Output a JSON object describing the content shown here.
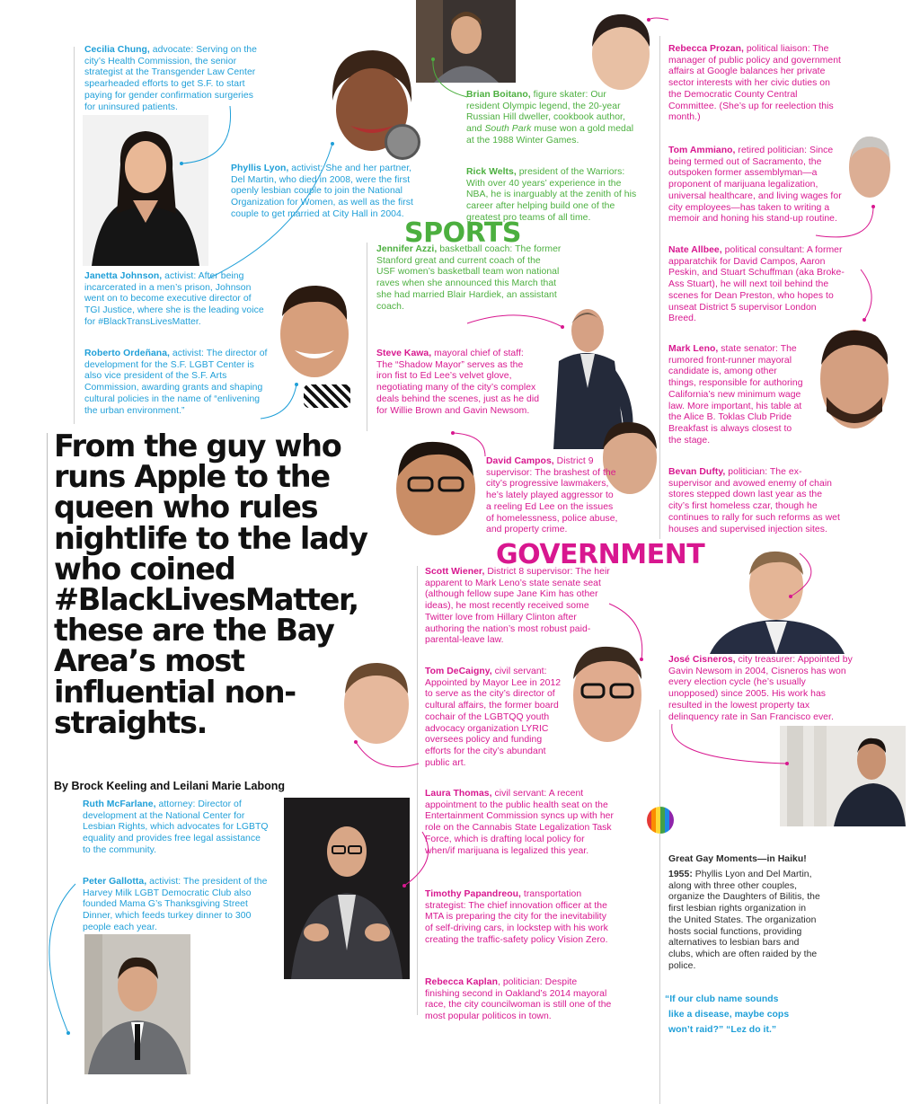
{
  "headline": "From the guy who runs Apple to the queen who rules nightlife to the lady who coined #BlackLivesMatter, these are the Bay Area’s most influential non-straights.",
  "byline": "By Brock Keeling and Leilani Marie Labong",
  "sections": {
    "sports": "SPORTS",
    "government": "GOVERNMENT"
  },
  "people": [
    {
      "id": "cecilia",
      "name": "Cecilia Chung,",
      "text": " advocate: Serving on the city’s Health Commission, the senior strategist at the Transgender Law Center spearheaded efforts to get S.F. to start paying for gender confirmation surgeries for uninsured patients."
    },
    {
      "id": "phyllis",
      "name": "Phyllis Lyon,",
      "text": " activist: She and her partner, Del Martin, who died in 2008, were the first openly lesbian couple to join the National Organization for Women, as well as the first couple to get married at City Hall in 2004."
    },
    {
      "id": "janetta",
      "name": "Janetta Johnson,",
      "text": " activist: After being incarcerated in a men’s prison, Johnson went on to become executive director of TGI Justice, where she is the leading voice for #BlackTransLivesMatter."
    },
    {
      "id": "roberto",
      "name": "Roberto Ordeñana,",
      "text": " activist: The director of development for the S.F. LGBT Center is also vice president of the S.F. Arts Commission, awarding grants and shaping cultural policies in the name of “enlivening the urban environment.”"
    },
    {
      "id": "brian",
      "name": "Brian Boitano,",
      "text_pre": " figure skater: Our resident Olympic legend, the 20-year Russian Hill dweller, cookbook author, and ",
      "text_em": "South Park",
      "text_post": " muse won a gold medal at the 1988 Winter Games."
    },
    {
      "id": "rick",
      "name": "Rick Welts,",
      "text": " president of the Warriors: With over 40 years’ experience in the NBA, he is inarguably at the zenith of his career after helping build one of the greatest pro teams of all time."
    },
    {
      "id": "jennifer",
      "name": "Jennifer Azzi,",
      "text": " basketball coach: The former Stanford great and current coach of the USF women’s basketball team won national raves when she announced this March that she had married Blair Hardiek, an assistant coach."
    },
    {
      "id": "steve",
      "name": "Steve Kawa,",
      "text": " mayoral chief of staff: The “Shadow Mayor” serves as the iron fist to Ed Lee’s velvet glove, negotiating many of the city’s complex deals behind the scenes, just as he did for Willie Brown and Gavin Newsom."
    },
    {
      "id": "david",
      "name": "David Campos,",
      "text": " District 9 supervisor: The brashest of the city’s progressive lawmakers, he’s lately played aggressor to a reeling Ed Lee on the issues of homelessness, police abuse, and property crime."
    },
    {
      "id": "scott",
      "name": "Scott Wiener,",
      "text": " District 8 supervisor: The heir apparent to Mark Leno’s state senate seat (although fellow supe Jane Kim has other ideas), he most recently received some Twitter love from Hillary Clinton after authoring the nation’s most robust paid-parental-leave law."
    },
    {
      "id": "tom_d",
      "name": "Tom DeCaigny,",
      "text": " civil servant: Appointed by Mayor Lee in 2012 to serve as the city’s director of cultural affairs, the former board cochair of the LGBTQQ youth advocacy organization LYRIC oversees policy and funding efforts for the city’s abundant public art."
    },
    {
      "id": "laura",
      "name": "Laura Thomas,",
      "text": " civil servant: A recent appointment to the public health seat on the Entertainment Commission syncs up with her role on the Cannabis State Legalization Task Force, which is drafting local policy for when/if marijuana is legalized this year."
    },
    {
      "id": "timothy",
      "name": "Timothy Papandreou,",
      "text": " transportation strategist: The chief innovation officer at the MTA is preparing the city for the inevitability of self-driving cars, in lockstep with his work creating the traffic-safety policy Vision Zero."
    },
    {
      "id": "kaplan",
      "name": "Rebecca Kaplan",
      "text": ", politician: Despite finishing second in Oakland’s 2014 mayoral race, the city councilwoman is still one of the most popular politicos in town."
    },
    {
      "id": "prozan",
      "name": "Rebecca Prozan,",
      "text": " political liaison: The manager of public policy and government affairs at Google balances her private sector interests with her civic duties on the Democratic County Central Committee. (She’s up for reelection this month.)"
    },
    {
      "id": "tom_a",
      "name": "Tom Ammiano,",
      "text": " retired politician: Since being termed out of Sacramento, the outspoken former assemblyman—a proponent of marijuana legalization, universal healthcare, and living wages for city employees—has taken to writing a memoir and honing his stand-up routine."
    },
    {
      "id": "nate",
      "name": "Nate Allbee,",
      "text": " political consultant: A former apparatchik for David Campos, Aaron Peskin, and Stuart Schuffman (aka Broke-Ass Stuart), he will next toil behind the scenes for Dean Preston, who hopes to unseat District 5 supervisor London Breed."
    },
    {
      "id": "mark",
      "name": "Mark Leno,",
      "text": " state senator: The rumored front-runner mayoral candidate is, among other things, responsible for authoring California’s new minimum wage law. More important, his table at the Alice B. Toklas Club Pride Breakfast is always closest to the stage."
    },
    {
      "id": "bevan",
      "name": "Bevan Dufty,",
      "text": " politician: The ex-supervisor and avowed enemy of chain stores stepped down last year as the city’s first homeless czar, though he continues to rally for such reforms as wet houses and supervised injection sites."
    },
    {
      "id": "jose",
      "name": "José Cisneros,",
      "text": " city treasurer: Appointed by Gavin Newsom in 2004, Cisneros has won every election cycle (he’s usually unopposed) since 2005. His work has resulted in the lowest property tax delinquency rate in San Francisco ever."
    },
    {
      "id": "ruth",
      "name": "Ruth McFarlane,",
      "text": " attorney: Director of development at the National Center for Lesbian Rights, which advocates for LGBTQ equality and provides free legal assistance to the community."
    },
    {
      "id": "peter",
      "name": "Peter Gallotta,",
      "text": " activist: The president of the Harvey Milk LGBT Democratic Club also founded Mama G’s Thanksgiving Street Dinner, which feeds turkey dinner to 300 people each year."
    }
  ],
  "haiku": {
    "title": "Great Gay Moments—in Haiku!",
    "year": "1955:",
    "text": " Phyllis Lyon and Del Martin, along with three other couples, organize the Daughters of Bilitis, the first lesbian rights organization in the United States. The organization hosts social functions, providing alternatives to lesbian bars and clubs, which are often raided by the police.",
    "lines": [
      "“If our club name sounds",
      "like a disease, maybe cops",
      "won’t raid?” “Lez do it.”"
    ]
  },
  "colors": {
    "blue": "#1f9fd8",
    "green": "#4caf3f",
    "pink": "#d8178f"
  }
}
